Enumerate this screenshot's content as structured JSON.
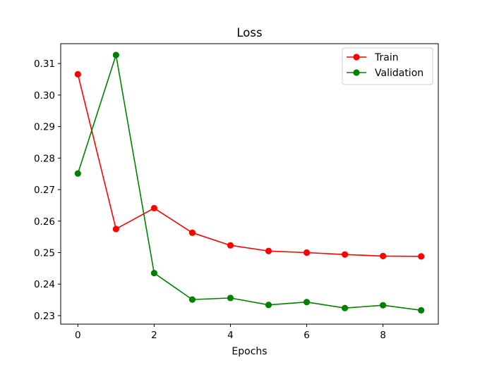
{
  "chart_data": {
    "type": "line",
    "title": "Loss",
    "xlabel": "Epochs",
    "ylabel": "",
    "x": [
      0,
      1,
      2,
      3,
      4,
      5,
      6,
      7,
      8,
      9
    ],
    "xlim": [
      -0.45,
      9.45
    ],
    "ylim": [
      0.2273,
      0.3163
    ],
    "xticks": [
      0,
      2,
      4,
      6,
      8
    ],
    "yticks": [
      0.23,
      0.24,
      0.25,
      0.26,
      0.27,
      0.28,
      0.29,
      0.3,
      0.31
    ],
    "xtick_labels": [
      "0",
      "2",
      "4",
      "6",
      "8"
    ],
    "ytick_labels": [
      "0.23",
      "0.24",
      "0.25",
      "0.26",
      "0.27",
      "0.28",
      "0.29",
      "0.30",
      "0.31"
    ],
    "grid": false,
    "legend_position": "top-right",
    "series": [
      {
        "name": "Train",
        "color": "#ff0000",
        "marker": "circle",
        "values": [
          0.3066,
          0.2575,
          0.2641,
          0.2563,
          0.2523,
          0.2505,
          0.25,
          0.2494,
          0.2489,
          0.2488
        ]
      },
      {
        "name": "Validation",
        "color": "#008000",
        "marker": "circle",
        "values": [
          0.2751,
          0.3127,
          0.2435,
          0.2351,
          0.2356,
          0.2334,
          0.2343,
          0.2324,
          0.2333,
          0.2317
        ]
      }
    ]
  }
}
